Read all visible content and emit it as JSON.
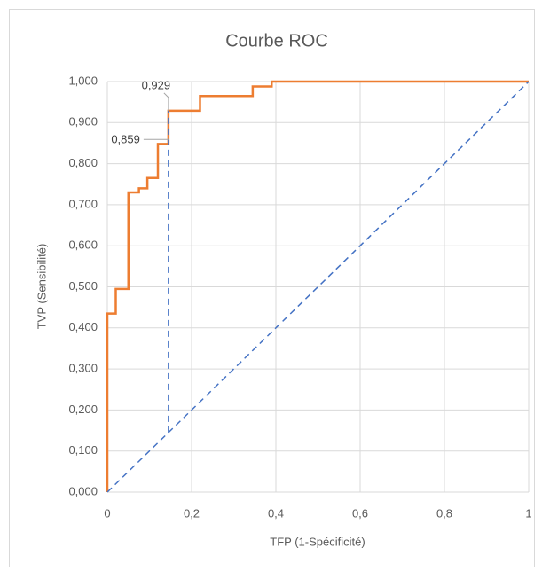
{
  "chart_data": {
    "type": "line",
    "title": "Courbe ROC",
    "x_label": "TFP (1-Spécificité)",
    "y_label": "TVP (Sensibilité)",
    "xlim": [
      0,
      1
    ],
    "xticks": [
      0,
      {
        "value": 0.2,
        "label": "0,2"
      },
      {
        "value": 0.4,
        "label": "0,4"
      },
      {
        "value": 0.6,
        "label": "0,6"
      },
      {
        "value": 0.8,
        "label": "0,8"
      },
      1
    ],
    "ylim": [
      0,
      1
    ],
    "yticks": [
      {
        "value": 0,
        "label": "0,000"
      },
      {
        "value": 0.1,
        "label": "0,100"
      },
      {
        "value": 0.2,
        "label": "0,200"
      },
      {
        "value": 0.3,
        "label": "0,300"
      },
      {
        "value": 0.4,
        "label": "0,400"
      },
      {
        "value": 0.5,
        "label": "0,500"
      },
      {
        "value": 0.6,
        "label": "0,600"
      },
      {
        "value": 0.7,
        "label": "0,700"
      },
      {
        "value": 0.8,
        "label": "0,800"
      },
      {
        "value": 0.9,
        "label": "0,900"
      },
      {
        "value": 1,
        "label": "1,000"
      }
    ],
    "grid": true,
    "series": [
      {
        "color": "#ed7d31",
        "dashed": false,
        "x": [
          0,
          0,
          0.02,
          0.02,
          0.05,
          0.05,
          0.075,
          0.075,
          0.095,
          0.095,
          0.12,
          0.12,
          0.145,
          0.145,
          0.22,
          0.22,
          0.345,
          0.345,
          0.39,
          0.39,
          1
        ],
        "values": [
          0,
          0.435,
          0.435,
          0.495,
          0.495,
          0.73,
          0.73,
          0.74,
          0.74,
          0.765,
          0.765,
          0.848,
          0.848,
          0.929,
          0.929,
          0.965,
          0.965,
          0.988,
          0.988,
          1,
          1
        ]
      },
      {
        "color": "#4472c4",
        "dashed": true,
        "x": [
          0,
          1
        ],
        "values": [
          0,
          1
        ]
      },
      {
        "color": "#4472c4",
        "dashed": true,
        "x": [
          0.145,
          0.145
        ],
        "values": [
          0.145,
          0.929
        ]
      }
    ],
    "annotations": [
      {
        "x": 0.145,
        "y": 0.929,
        "label": "0,929"
      },
      {
        "x": 0.145,
        "y": 0.859,
        "label": "0,859"
      }
    ]
  }
}
